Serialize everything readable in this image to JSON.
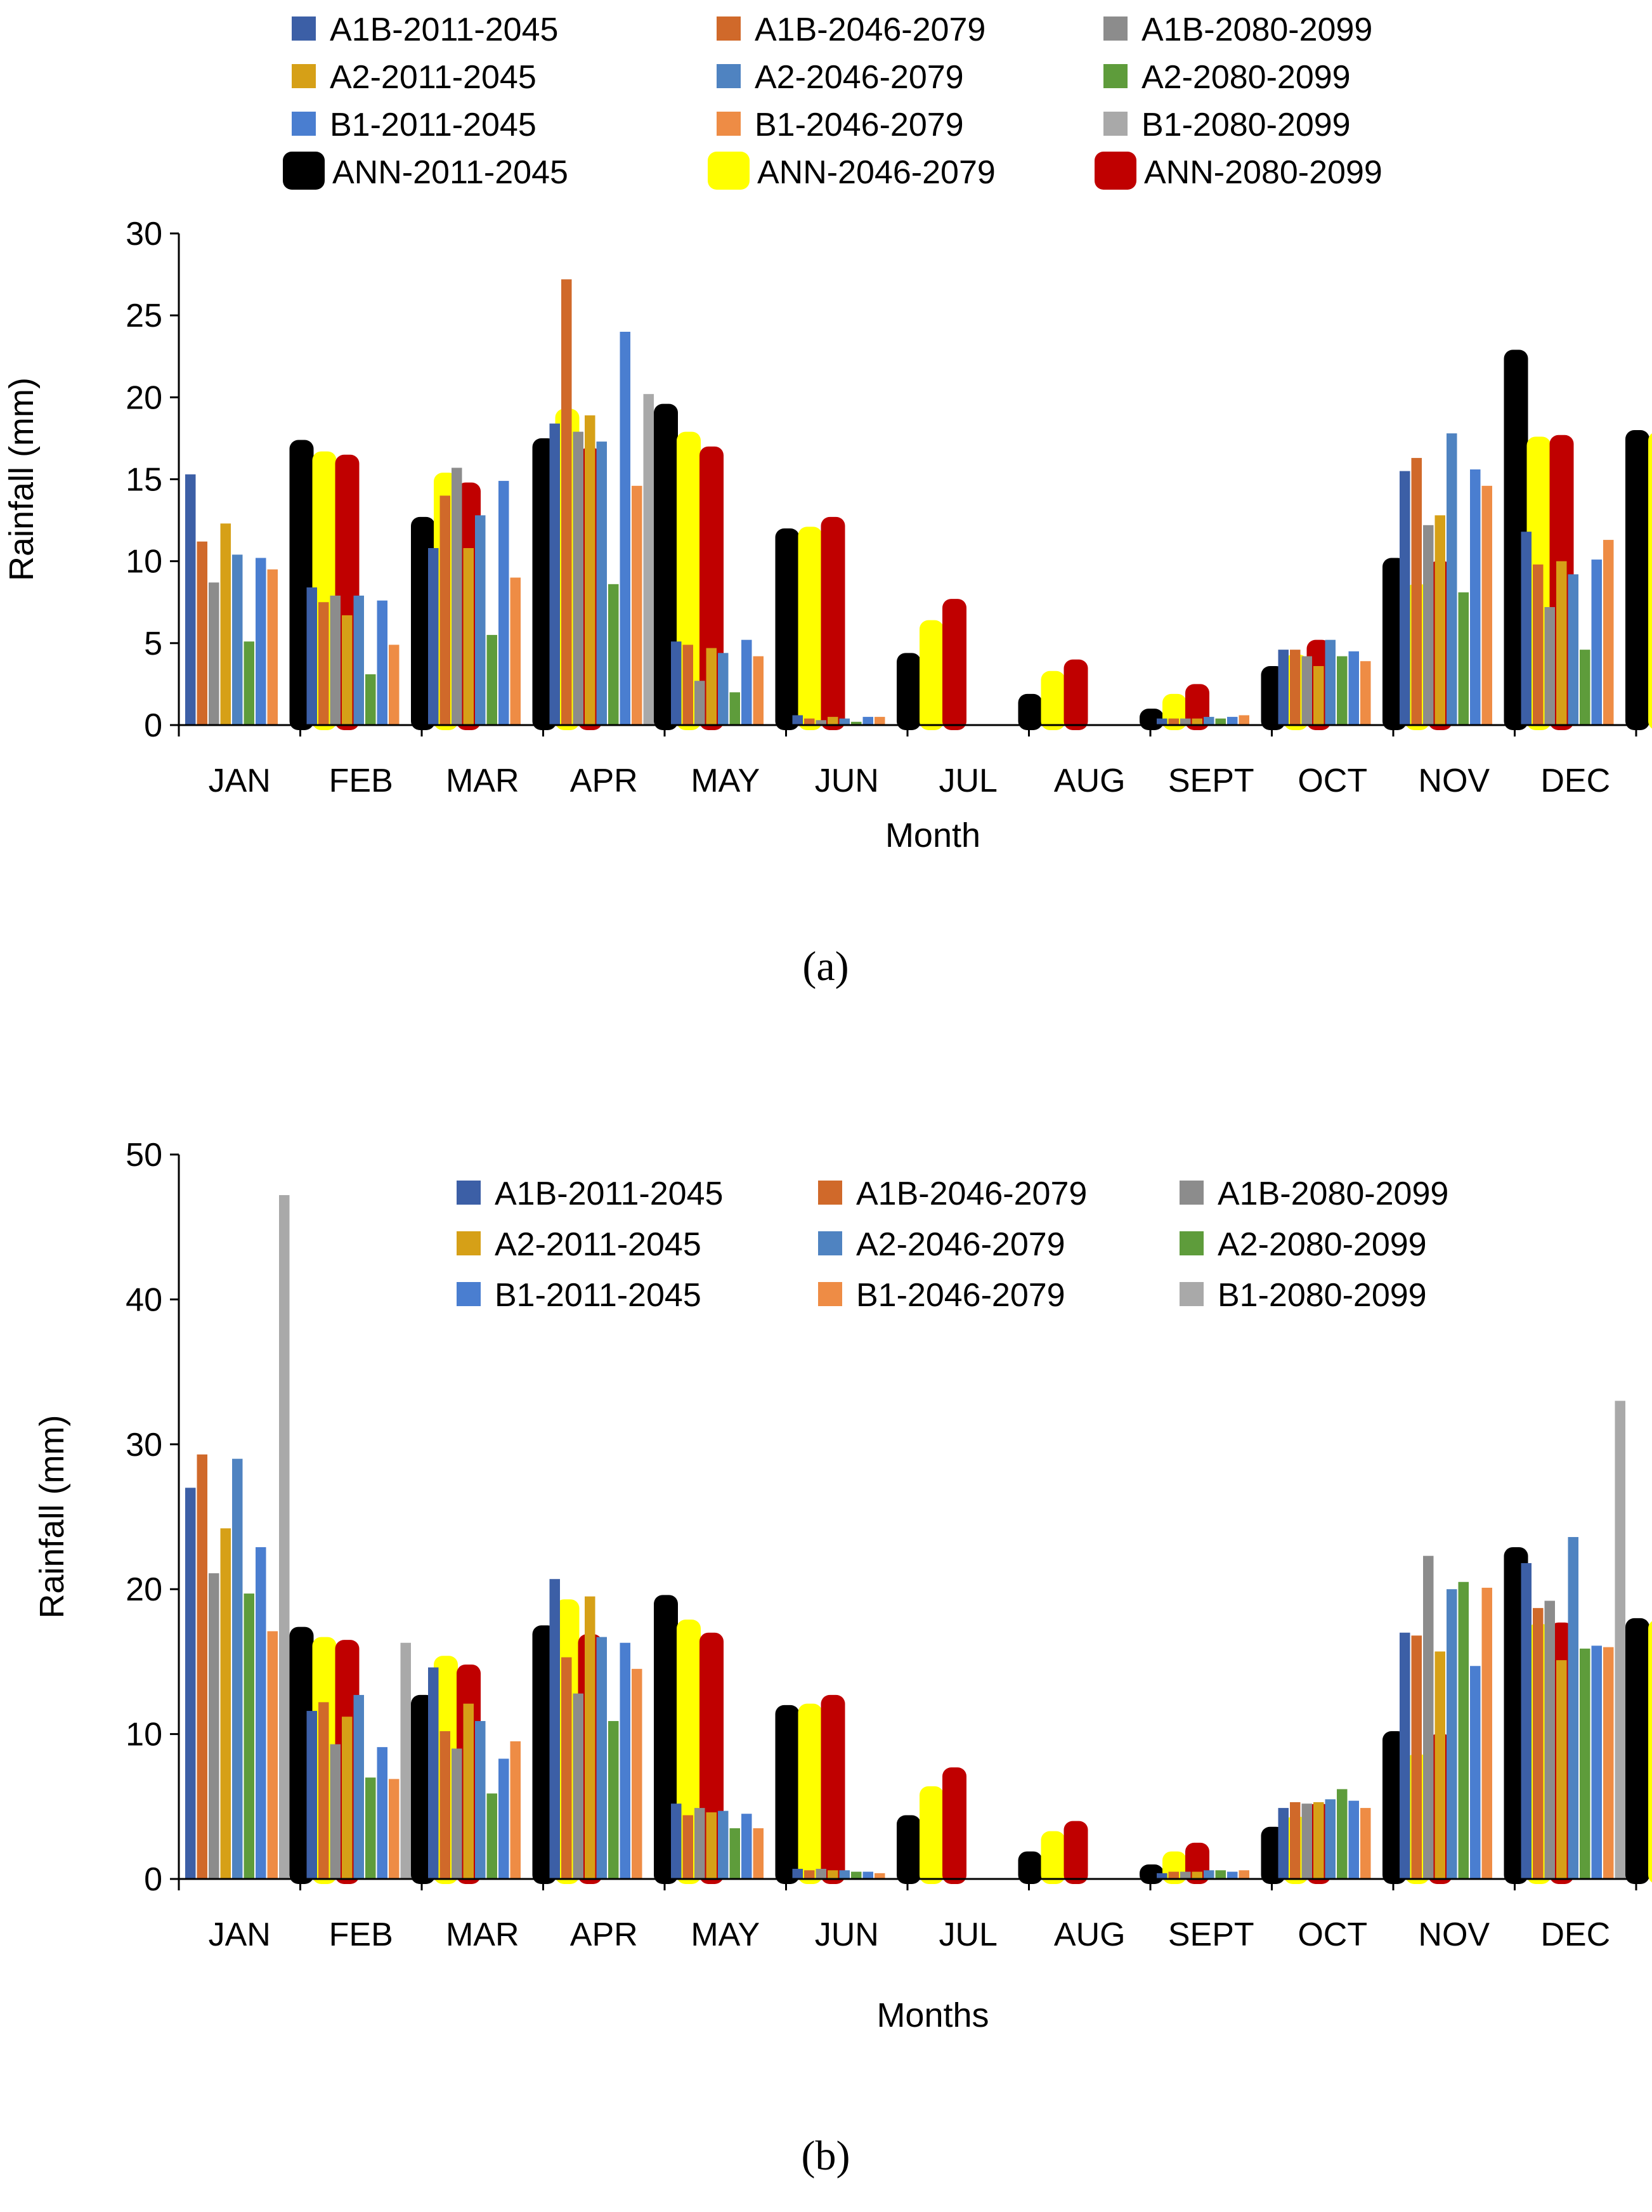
{
  "categories": [
    "JAN",
    "FEB",
    "MAR",
    "APR",
    "MAY",
    "JUN",
    "JUL",
    "AUG",
    "SEPT",
    "OCT",
    "NOV",
    "DEC"
  ],
  "series_colors": {
    "A1B-2011-2045": "#3C5FA6",
    "A1B-2046-2079": "#D0692A",
    "A1B-2080-2099": "#8C8C8C",
    "A2-2011-2045": "#D6A017",
    "A2-2046-2079": "#4F83C1",
    "A2-2080-2099": "#5E9C3B",
    "B1-2011-2045": "#4A7ED0",
    "B1-2046-2079": "#EE8C45",
    "B1-2080-2099": "#A9A9A9",
    "ANN-2011-2045": "#000000",
    "ANN-2046-2079": "#FFFF00",
    "ANN-2080-2099": "#C00000"
  },
  "chart_data": [
    {
      "type": "bar",
      "panel_label": "(a)",
      "xlabel": "Month",
      "ylabel": "Rainfall (mm)",
      "ylim": [
        0,
        30
      ],
      "yticks": [
        "0",
        "5",
        "10",
        "15",
        "20",
        "25",
        "30"
      ],
      "legend_position": "top",
      "categories": [
        "JAN",
        "FEB",
        "MAR",
        "APR",
        "MAY",
        "JUN",
        "JUL",
        "AUG",
        "SEPT",
        "OCT",
        "NOV",
        "DEC"
      ],
      "series": [
        {
          "name": "A1B-2011-2045",
          "values": [
            15.3,
            8.4,
            10.8,
            18.4,
            5.1,
            0.6,
            0,
            0,
            0.4,
            4.6,
            15.5,
            11.8
          ]
        },
        {
          "name": "A1B-2046-2079",
          "values": [
            11.2,
            7.5,
            14.0,
            27.2,
            4.9,
            0.4,
            0,
            0,
            0.4,
            4.6,
            16.3,
            9.8
          ]
        },
        {
          "name": "A1B-2080-2099",
          "values": [
            8.7,
            7.9,
            15.7,
            17.9,
            2.7,
            0.3,
            0,
            0,
            0.4,
            4.2,
            12.2,
            7.2
          ]
        },
        {
          "name": "A2-2011-2045",
          "values": [
            12.3,
            6.7,
            10.8,
            18.9,
            4.7,
            0.5,
            0,
            0,
            0.4,
            3.6,
            12.8,
            10.0
          ]
        },
        {
          "name": "A2-2046-2079",
          "values": [
            10.4,
            7.9,
            12.8,
            17.3,
            4.4,
            0.4,
            0,
            0,
            0.5,
            5.2,
            17.8,
            9.2
          ]
        },
        {
          "name": "A2-2080-2099",
          "values": [
            5.1,
            3.1,
            5.5,
            8.6,
            2.0,
            0.2,
            0,
            0,
            0.4,
            4.2,
            8.1,
            4.6
          ]
        },
        {
          "name": "B1-2011-2045",
          "values": [
            10.2,
            7.6,
            14.9,
            24.0,
            5.2,
            0.5,
            0,
            0,
            0.5,
            4.5,
            15.6,
            10.1
          ]
        },
        {
          "name": "B1-2046-2079",
          "values": [
            9.5,
            4.9,
            9.0,
            14.6,
            4.2,
            0.5,
            0,
            0,
            0.6,
            3.9,
            14.6,
            11.3
          ]
        },
        {
          "name": "B1-2080-2099",
          "values": [
            0,
            0,
            0,
            20.2,
            0,
            0,
            0,
            0,
            0,
            0,
            0,
            0
          ]
        },
        {
          "name": "ANN-2011-2045",
          "values": [
            17.4,
            12.7,
            17.5,
            19.6,
            12.0,
            4.4,
            1.9,
            1.0,
            3.6,
            10.2,
            22.9,
            18.0
          ]
        },
        {
          "name": "ANN-2046-2079",
          "values": [
            16.7,
            15.4,
            19.3,
            17.9,
            12.1,
            6.4,
            3.3,
            1.9,
            4.3,
            8.6,
            17.6,
            17.9
          ]
        },
        {
          "name": "ANN-2080-2099",
          "values": [
            16.5,
            14.8,
            16.9,
            17.0,
            12.7,
            7.7,
            4.0,
            2.5,
            5.2,
            10.0,
            17.7,
            18.3
          ]
        }
      ]
    },
    {
      "type": "bar",
      "panel_label": "(b)",
      "xlabel": "Months",
      "ylabel": "Rainfall (mm)",
      "ylim": [
        0,
        50
      ],
      "yticks": [
        "0",
        "10",
        "20",
        "30",
        "40",
        "50"
      ],
      "legend_position": "top-inside",
      "legend_series": [
        "A1B-2011-2045",
        "A1B-2046-2079",
        "A1B-2080-2099",
        "A2-2011-2045",
        "A2-2046-2079",
        "A2-2080-2099",
        "B1-2011-2045",
        "B1-2046-2079",
        "B1-2080-2099"
      ],
      "categories": [
        "JAN",
        "FEB",
        "MAR",
        "APR",
        "MAY",
        "JUN",
        "JUL",
        "AUG",
        "SEPT",
        "OCT",
        "NOV",
        "DEC"
      ],
      "series": [
        {
          "name": "A1B-2011-2045",
          "values": [
            27.0,
            11.6,
            14.6,
            20.7,
            5.2,
            0.7,
            0,
            0,
            0.4,
            4.9,
            17.0,
            21.8
          ]
        },
        {
          "name": "A1B-2046-2079",
          "values": [
            29.3,
            12.2,
            10.2,
            15.3,
            4.4,
            0.6,
            0,
            0,
            0.5,
            5.3,
            16.8,
            18.7
          ]
        },
        {
          "name": "A1B-2080-2099",
          "values": [
            21.1,
            9.3,
            9.0,
            12.8,
            4.9,
            0.7,
            0,
            0,
            0.5,
            5.2,
            22.3,
            19.2
          ]
        },
        {
          "name": "A2-2011-2045",
          "values": [
            24.2,
            11.2,
            12.1,
            19.5,
            4.6,
            0.6,
            0,
            0,
            0.5,
            5.3,
            15.7,
            15.1
          ]
        },
        {
          "name": "A2-2046-2079",
          "values": [
            29.0,
            12.7,
            10.9,
            16.7,
            4.7,
            0.6,
            0,
            0,
            0.6,
            5.5,
            20.0,
            23.6
          ]
        },
        {
          "name": "A2-2080-2099",
          "values": [
            19.7,
            7.0,
            5.9,
            10.9,
            3.5,
            0.5,
            0,
            0,
            0.6,
            6.2,
            20.5,
            15.9
          ]
        },
        {
          "name": "B1-2011-2045",
          "values": [
            22.9,
            9.1,
            8.3,
            16.3,
            4.5,
            0.5,
            0,
            0,
            0.5,
            5.4,
            14.7,
            16.1
          ]
        },
        {
          "name": "B1-2046-2079",
          "values": [
            17.1,
            6.9,
            9.5,
            14.5,
            3.5,
            0.4,
            0,
            0,
            0.6,
            4.9,
            20.1,
            16.0
          ]
        },
        {
          "name": "B1-2080-2099",
          "values": [
            47.2,
            16.3,
            0,
            0,
            0,
            0,
            0,
            0,
            0,
            0,
            0,
            33.0
          ]
        },
        {
          "name": "ANN-2011-2045",
          "values": [
            17.4,
            12.7,
            17.5,
            19.6,
            12.0,
            4.4,
            1.9,
            1.0,
            3.6,
            10.2,
            22.9,
            18.0
          ]
        },
        {
          "name": "ANN-2046-2079",
          "values": [
            16.7,
            15.4,
            19.3,
            17.9,
            12.1,
            6.4,
            3.3,
            1.9,
            4.3,
            8.6,
            17.6,
            17.9
          ]
        },
        {
          "name": "ANN-2080-2099",
          "values": [
            16.5,
            14.8,
            16.9,
            17.0,
            12.7,
            7.7,
            4.0,
            2.5,
            5.2,
            10.0,
            17.7,
            18.3
          ]
        }
      ]
    }
  ]
}
